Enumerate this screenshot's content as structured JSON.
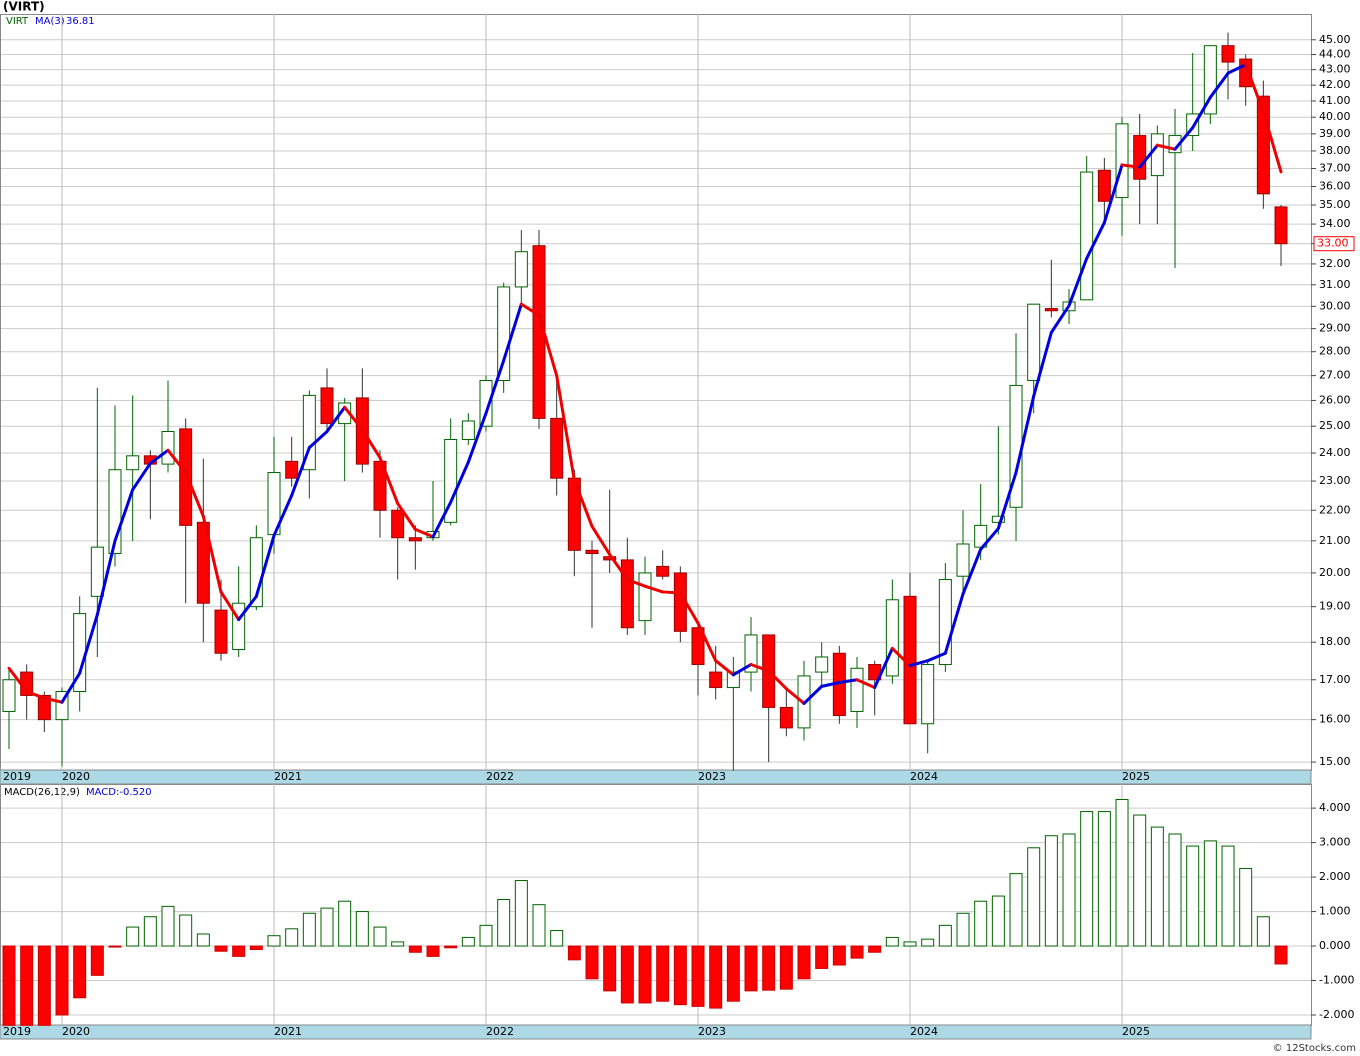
{
  "chart_data": [
    {
      "type": "candlestick",
      "title": "(VIRT)",
      "log_scale": true,
      "grid": true,
      "categories": [
        null,
        null,
        null,
        "2020",
        null,
        null,
        null,
        null,
        null,
        null,
        null,
        null,
        null,
        null,
        null,
        "2021",
        null,
        null,
        null,
        null,
        null,
        null,
        null,
        null,
        null,
        null,
        null,
        "2022",
        null,
        null,
        null,
        null,
        null,
        null,
        null,
        null,
        null,
        null,
        null,
        "2023",
        null,
        null,
        null,
        null,
        null,
        null,
        null,
        null,
        null,
        null,
        null,
        "2024",
        null,
        null,
        null,
        null,
        null,
        null,
        null,
        null,
        null,
        null,
        null,
        "2025",
        null,
        null,
        null,
        null,
        null,
        null,
        null,
        null,
        null
      ],
      "start_label": "2019",
      "series": [
        {
          "name": "VIRT",
          "color": "#006400",
          "down_color": "#ff0000",
          "open": [
            16.2,
            17.2,
            16.6,
            16.0,
            16.7,
            19.3,
            20.6,
            23.4,
            23.9,
            23.6,
            24.9,
            21.6,
            18.9,
            17.8,
            19.0,
            21.2,
            23.7,
            23.4,
            26.5,
            25.1,
            26.1,
            23.7,
            22.0,
            21.1,
            21.1,
            21.6,
            24.5,
            25.0,
            26.8,
            30.9,
            32.9,
            25.3,
            23.1,
            20.7,
            20.5,
            20.4,
            18.6,
            20.2,
            20.0,
            18.4,
            17.2,
            16.8,
            17.2,
            18.2,
            16.3,
            15.8,
            17.2,
            17.7,
            16.2,
            17.4,
            17.1,
            19.3,
            15.9,
            17.4,
            19.9,
            20.8,
            21.6,
            22.1,
            26.8,
            29.9,
            29.8,
            30.3,
            36.9,
            35.4,
            38.9,
            36.6,
            37.9,
            38.9,
            40.2,
            44.6,
            43.7,
            41.3,
            34.9
          ],
          "high": [
            17.3,
            17.4,
            16.7,
            16.8,
            19.3,
            26.5,
            25.8,
            26.2,
            24.1,
            26.8,
            25.3,
            23.8,
            19.8,
            20.2,
            21.5,
            24.6,
            24.6,
            26.4,
            27.3,
            26.1,
            27.3,
            24.1,
            22.1,
            21.5,
            23.0,
            25.3,
            25.5,
            27.0,
            31.1,
            33.7,
            33.7,
            26.9,
            23.4,
            21.0,
            22.7,
            21.1,
            20.5,
            20.7,
            20.2,
            18.6,
            17.9,
            17.6,
            18.7,
            18.2,
            16.8,
            17.5,
            18.0,
            17.9,
            17.6,
            17.5,
            19.8,
            20.0,
            17.5,
            20.3,
            22.0,
            22.9,
            25.0,
            28.8,
            30.1,
            32.2,
            30.8,
            37.7,
            37.6,
            40.0,
            40.2,
            39.5,
            40.5,
            44.1,
            44.6,
            45.5,
            44.0,
            42.3,
            35.0
          ],
          "low": [
            15.3,
            16.0,
            15.7,
            14.9,
            16.2,
            17.6,
            20.2,
            21.0,
            21.7,
            23.3,
            19.1,
            18.0,
            17.5,
            17.6,
            18.9,
            20.6,
            22.8,
            22.4,
            24.8,
            23.0,
            23.3,
            21.1,
            19.8,
            20.1,
            21.0,
            21.5,
            24.3,
            24.8,
            26.3,
            30.0,
            24.9,
            22.5,
            19.9,
            18.4,
            20.0,
            18.2,
            18.2,
            19.8,
            18.0,
            16.6,
            16.5,
            14.8,
            16.7,
            15.0,
            15.6,
            15.5,
            16.8,
            15.9,
            15.8,
            16.1,
            16.9,
            15.9,
            15.2,
            17.2,
            19.3,
            20.4,
            21.2,
            21.0,
            25.5,
            29.5,
            29.2,
            30.3,
            34.0,
            33.4,
            34.0,
            34.0,
            31.8,
            38.0,
            39.6,
            41.1,
            40.7,
            34.8,
            31.9
          ],
          "close": [
            17.0,
            16.6,
            16.0,
            16.7,
            18.8,
            20.8,
            23.4,
            23.9,
            23.6,
            24.8,
            21.5,
            19.1,
            17.7,
            19.1,
            21.1,
            23.3,
            23.1,
            26.2,
            25.1,
            25.9,
            23.6,
            22.0,
            21.1,
            21.0,
            21.3,
            24.5,
            25.2,
            26.8,
            30.9,
            32.6,
            25.3,
            23.1,
            20.7,
            20.6,
            20.4,
            18.4,
            20.0,
            19.9,
            18.3,
            17.4,
            16.8,
            17.2,
            18.2,
            16.3,
            15.8,
            17.1,
            17.6,
            16.1,
            17.3,
            17.0,
            19.2,
            15.9,
            17.4,
            19.8,
            20.9,
            21.5,
            21.8,
            26.6,
            30.1,
            29.8,
            30.2,
            36.8,
            35.2,
            39.6,
            36.4,
            39.0,
            38.9,
            40.2,
            44.6,
            43.5,
            41.9,
            35.6,
            33.0
          ],
          "last_label": "33.00"
        },
        {
          "name": "MA(3)",
          "type": "line",
          "color": "#0000dd",
          "down_color": "#ee0000",
          "values": [
            17.3,
            16.7,
            16.53,
            16.43,
            17.17,
            18.77,
            21.0,
            22.7,
            23.63,
            24.1,
            23.3,
            21.8,
            19.43,
            18.63,
            19.3,
            21.17,
            22.5,
            24.2,
            24.8,
            25.73,
            24.87,
            23.83,
            22.23,
            21.37,
            21.13,
            22.27,
            23.67,
            25.5,
            27.63,
            30.1,
            29.6,
            27.0,
            23.03,
            21.47,
            20.57,
            19.8,
            19.6,
            19.43,
            19.4,
            18.53,
            17.5,
            17.13,
            17.4,
            17.23,
            16.77,
            16.4,
            16.83,
            16.93,
            17.0,
            16.8,
            17.83,
            17.37,
            17.5,
            17.7,
            19.37,
            20.73,
            21.4,
            23.3,
            26.17,
            28.83,
            30.03,
            32.27,
            34.07,
            37.2,
            37.07,
            38.33,
            38.1,
            39.37,
            41.23,
            42.77,
            43.33,
            40.33,
            36.81
          ]
        }
      ],
      "ylim": [
        14.82,
        46.8
      ],
      "yticks": [
        {
          "value": 15,
          "label": "15.00"
        },
        {
          "value": 16,
          "label": "16.00"
        },
        {
          "value": 17,
          "label": "17.00"
        },
        {
          "value": 18,
          "label": "18.00"
        },
        {
          "value": 19,
          "label": "19.00"
        },
        {
          "value": 20,
          "label": "20.00"
        },
        {
          "value": 21,
          "label": "21.00"
        },
        {
          "value": 22,
          "label": "22.00"
        },
        {
          "value": 23,
          "label": "23.00"
        },
        {
          "value": 24,
          "label": "24.00"
        },
        {
          "value": 25,
          "label": "25.00"
        },
        {
          "value": 26,
          "label": "26.00"
        },
        {
          "value": 27,
          "label": "27.00"
        },
        {
          "value": 28,
          "label": "28.00"
        },
        {
          "value": 29,
          "label": "29.00"
        },
        {
          "value": 30,
          "label": "30.00"
        },
        {
          "value": 31,
          "label": "31.00"
        },
        {
          "value": 32,
          "label": "32.00"
        },
        {
          "value": 33,
          "label": "33.00"
        },
        {
          "value": 34,
          "label": "34.00"
        },
        {
          "value": 35,
          "label": "35.00"
        },
        {
          "value": 36,
          "label": "36.00"
        },
        {
          "value": 37,
          "label": "37.00"
        },
        {
          "value": 38,
          "label": "38.00"
        },
        {
          "value": 39,
          "label": "39.00"
        },
        {
          "value": 40,
          "label": "40.00"
        },
        {
          "value": 41,
          "label": "41.00"
        },
        {
          "value": 42,
          "label": "42.00"
        },
        {
          "value": 43,
          "label": "43.00"
        },
        {
          "value": 44,
          "label": "44.00"
        },
        {
          "value": 45,
          "label": "45.00"
        }
      ]
    },
    {
      "type": "bar",
      "title": "MACD(26,12,9)",
      "subtitle": "MACD:-0.520",
      "grid": true,
      "color": "#006400",
      "down_color": "#ff0000",
      "values": [
        -2.3,
        -2.3,
        -2.3,
        -2.0,
        -1.5,
        -0.85,
        -0.03,
        0.55,
        0.85,
        1.15,
        0.9,
        0.35,
        -0.15,
        -0.3,
        -0.1,
        0.3,
        0.5,
        0.95,
        1.1,
        1.3,
        1.0,
        0.55,
        0.12,
        -0.18,
        -0.3,
        -0.05,
        0.25,
        0.6,
        1.35,
        1.9,
        1.2,
        0.45,
        -0.4,
        -0.95,
        -1.3,
        -1.65,
        -1.65,
        -1.6,
        -1.7,
        -1.75,
        -1.8,
        -1.6,
        -1.3,
        -1.28,
        -1.25,
        -0.95,
        -0.65,
        -0.55,
        -0.35,
        -0.18,
        0.25,
        0.12,
        0.2,
        0.6,
        0.95,
        1.3,
        1.45,
        2.1,
        2.85,
        3.2,
        3.25,
        3.9,
        3.9,
        4.25,
        3.8,
        3.45,
        3.25,
        2.9,
        3.05,
        2.9,
        2.25,
        0.85,
        -0.52
      ],
      "ylim": [
        -2.29,
        4.7
      ],
      "yticks": [
        {
          "value": -2,
          "label": "-2.000"
        },
        {
          "value": -1,
          "label": "-1.000"
        },
        {
          "value": 0,
          "label": "0.000"
        },
        {
          "value": 1,
          "label": "1.000"
        },
        {
          "value": 2,
          "label": "2.000"
        },
        {
          "value": 3,
          "label": "3.000"
        },
        {
          "value": 4,
          "label": "4.000"
        }
      ]
    }
  ],
  "footer": "© 12Stocks.com"
}
